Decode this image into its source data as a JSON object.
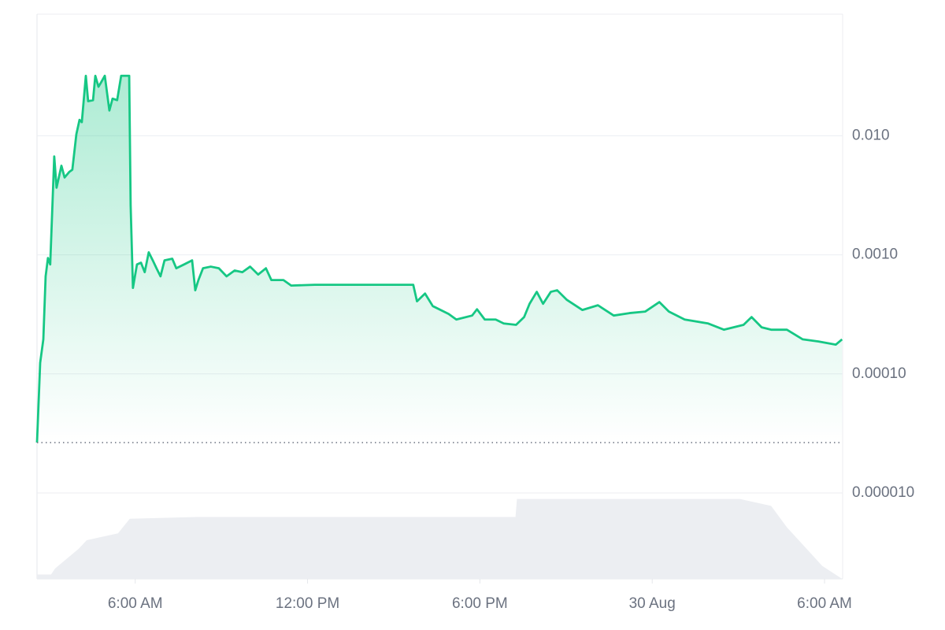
{
  "chart_data": {
    "type": "area",
    "log_y": true,
    "grid": true,
    "xlim": [
      2.58,
      30.63
    ],
    "xticks": [
      {
        "value": 6,
        "label": "6:00 AM"
      },
      {
        "value": 12,
        "label": "12:00 PM"
      },
      {
        "value": 18,
        "label": "6:00 PM"
      },
      {
        "value": 24,
        "label": "30 Aug"
      },
      {
        "value": 30,
        "label": "6:00 AM"
      }
    ],
    "ylim": [
      1.9e-06,
      0.105
    ],
    "yticks": [
      {
        "value": 0.01,
        "label": "0.010"
      },
      {
        "value": 0.001,
        "label": "0.0010"
      },
      {
        "value": 0.0001,
        "label": "0.00010"
      },
      {
        "value": 1e-05,
        "label": "0.000010"
      }
    ],
    "y2lim": [
      0,
      100
    ],
    "reference_line": 2.65e-05,
    "series": [
      {
        "color": "#16c784",
        "x": [
          2.58,
          2.69,
          2.8,
          2.88,
          2.96,
          3.04,
          3.18,
          3.26,
          3.43,
          3.54,
          3.7,
          3.81,
          3.95,
          4.06,
          4.14,
          4.28,
          4.36,
          4.53,
          4.61,
          4.72,
          4.8,
          4.94,
          5.1,
          5.21,
          5.37,
          5.51,
          5.79,
          5.84,
          5.92,
          6.06,
          6.2,
          6.33,
          6.47,
          6.61,
          6.74,
          6.88,
          7.02,
          7.29,
          7.43,
          7.7,
          7.98,
          8.09,
          8.2,
          8.36,
          8.63,
          8.91,
          9.18,
          9.46,
          9.73,
          10.0,
          10.28,
          10.55,
          10.74,
          11.16,
          11.43,
          12.25,
          15.68,
          15.81,
          16.09,
          16.36,
          16.91,
          17.18,
          17.73,
          17.9,
          18.17,
          18.55,
          18.83,
          19.26,
          19.54,
          19.73,
          19.98,
          20.2,
          20.47,
          20.69,
          21.02,
          21.57,
          22.11,
          22.66,
          23.21,
          23.76,
          24.25,
          24.58,
          25.13,
          25.95,
          26.5,
          27.18,
          27.46,
          27.81,
          28.14,
          28.69,
          29.24,
          29.79,
          30.39,
          30.61
        ],
        "values": [
          2.65e-05,
          0.000124,
          0.000195,
          0.00066,
          0.00094,
          0.00083,
          0.0067,
          0.00366,
          0.0056,
          0.00446,
          0.00496,
          0.00519,
          0.0103,
          0.0136,
          0.013,
          0.0319,
          0.0195,
          0.0199,
          0.0319,
          0.0258,
          0.0278,
          0.0319,
          0.0163,
          0.0205,
          0.0199,
          0.0319,
          0.0319,
          0.00261,
          0.000527,
          0.00083,
          0.000859,
          0.000715,
          0.00105,
          0.000899,
          0.000771,
          0.00066,
          0.000899,
          0.000927,
          0.000771,
          0.00083,
          0.000899,
          0.000504,
          0.000614,
          0.000771,
          0.000796,
          0.000771,
          0.00066,
          0.000738,
          0.000715,
          0.000796,
          0.000683,
          0.000771,
          0.000614,
          0.000614,
          0.000552,
          0.00056,
          0.00056,
          0.000407,
          0.000473,
          0.000371,
          0.000319,
          0.000286,
          0.000309,
          0.000349,
          0.000286,
          0.000286,
          0.000265,
          0.000258,
          0.0003,
          0.000388,
          0.000489,
          0.000388,
          0.000489,
          0.000504,
          0.00042,
          0.000344,
          0.000377,
          0.000309,
          0.000324,
          0.000334,
          0.000401,
          0.000334,
          0.000286,
          0.000265,
          0.000235,
          0.000258,
          0.0003,
          0.000246,
          0.000235,
          0.000235,
          0.000195,
          0.000187,
          0.000176,
          0.000195
        ]
      },
      {
        "color": "#eceef2",
        "axis": "y2",
        "x": [
          2.58,
          3.07,
          3.21,
          4.03,
          4.31,
          5.4,
          5.81,
          8.14,
          19.24,
          19.29,
          27.05,
          28.14,
          28.69,
          29.51,
          29.92,
          30.61
        ],
        "values": [
          5,
          5,
          12,
          35,
          45,
          53,
          70,
          72,
          72,
          93,
          93,
          85,
          60,
          30,
          15,
          0
        ]
      }
    ]
  }
}
